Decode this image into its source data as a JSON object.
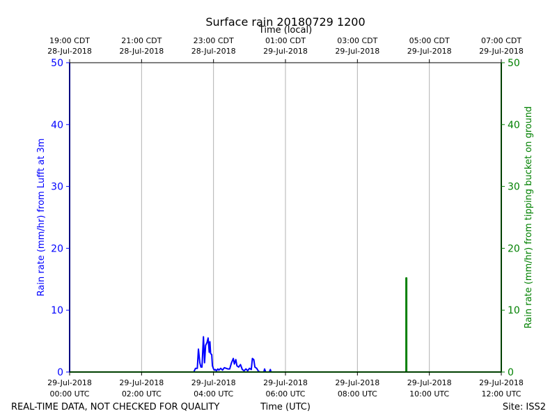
{
  "chart_data": {
    "type": "line",
    "title": "Surface rain 20180729 1200",
    "top_axis_label": "Time (local)",
    "xlabel": "Time (UTC)",
    "ylabel_left": "Rain rate (mm/hr) from Lufft at 3m",
    "ylabel_right": "Rain rate (mm/hr) from tipping bucket on ground",
    "footer_left": "REAL-TIME DATA, NOT CHECKED FOR QUALITY",
    "footer_right": "Site: ISS2",
    "xlim_hours_utc": [
      0,
      12
    ],
    "ylim": [
      0,
      50
    ],
    "grid": true,
    "colors": {
      "left": "#0000ff",
      "right": "#008000",
      "grid": "#b0b0b0"
    },
    "x_ticks_utc": [
      {
        "hour": 0,
        "line1": "29-Jul-2018",
        "line2": "00:00 UTC"
      },
      {
        "hour": 2,
        "line1": "29-Jul-2018",
        "line2": "02:00 UTC"
      },
      {
        "hour": 4,
        "line1": "29-Jul-2018",
        "line2": "04:00 UTC"
      },
      {
        "hour": 6,
        "line1": "29-Jul-2018",
        "line2": "06:00 UTC"
      },
      {
        "hour": 8,
        "line1": "29-Jul-2018",
        "line2": "08:00 UTC"
      },
      {
        "hour": 10,
        "line1": "29-Jul-2018",
        "line2": "10:00 UTC"
      },
      {
        "hour": 12,
        "line1": "29-Jul-2018",
        "line2": "12:00 UTC"
      }
    ],
    "x_ticks_local": [
      {
        "hour": 0,
        "line1": "19:00 CDT",
        "line2": "28-Jul-2018"
      },
      {
        "hour": 2,
        "line1": "21:00 CDT",
        "line2": "28-Jul-2018"
      },
      {
        "hour": 4,
        "line1": "23:00 CDT",
        "line2": "28-Jul-2018"
      },
      {
        "hour": 6,
        "line1": "01:00 CDT",
        "line2": "29-Jul-2018"
      },
      {
        "hour": 8,
        "line1": "03:00 CDT",
        "line2": "29-Jul-2018"
      },
      {
        "hour": 10,
        "line1": "05:00 CDT",
        "line2": "29-Jul-2018"
      },
      {
        "hour": 12,
        "line1": "07:00 CDT",
        "line2": "29-Jul-2018"
      }
    ],
    "y_ticks": [
      0,
      10,
      20,
      30,
      40,
      50
    ],
    "series": [
      {
        "axis": "left",
        "color": "#0000ff",
        "x": [
          0,
          0,
          0.01,
          3.45,
          3.5,
          3.55,
          3.58,
          3.62,
          3.65,
          3.68,
          3.72,
          3.75,
          3.78,
          3.82,
          3.85,
          3.88,
          3.9,
          3.92,
          3.95,
          3.97,
          4.0,
          4.03,
          4.05,
          4.08,
          4.12,
          4.15,
          4.2,
          4.25,
          4.3,
          4.35,
          4.4,
          4.45,
          4.5,
          4.55,
          4.58,
          4.62,
          4.65,
          4.7,
          4.75,
          4.8,
          4.85,
          4.9,
          4.95,
          5.0,
          5.05,
          5.08,
          5.12,
          5.15,
          5.2,
          5.25,
          5.3,
          5.4,
          5.42,
          5.45,
          5.55,
          5.58,
          5.6,
          5.7,
          12
        ],
        "y": [
          50,
          0,
          0,
          0,
          0.6,
          0.6,
          3.7,
          1.5,
          0.8,
          0.8,
          5.7,
          1.5,
          4.3,
          4.8,
          5.5,
          3.2,
          4.9,
          3.0,
          2.8,
          1.0,
          0.5,
          0.3,
          0.4,
          0.2,
          0.5,
          0.3,
          0.6,
          0.3,
          0.7,
          0.6,
          0.5,
          0.5,
          1.5,
          2.2,
          1.3,
          2.0,
          1.0,
          0.8,
          1.2,
          0.4,
          0.2,
          0.5,
          0.2,
          0.6,
          0.4,
          2.2,
          2.0,
          0.8,
          0.6,
          0.1,
          0.0,
          0.0,
          0.5,
          0.0,
          0.0,
          0.4,
          0.0,
          0.0,
          0
        ]
      },
      {
        "axis": "right",
        "color": "#008000",
        "x": [
          0,
          9.35,
          9.35,
          9.37,
          9.37,
          12,
          12
        ],
        "y": [
          0,
          0,
          15.2,
          15.2,
          0,
          0,
          50
        ]
      }
    ]
  }
}
